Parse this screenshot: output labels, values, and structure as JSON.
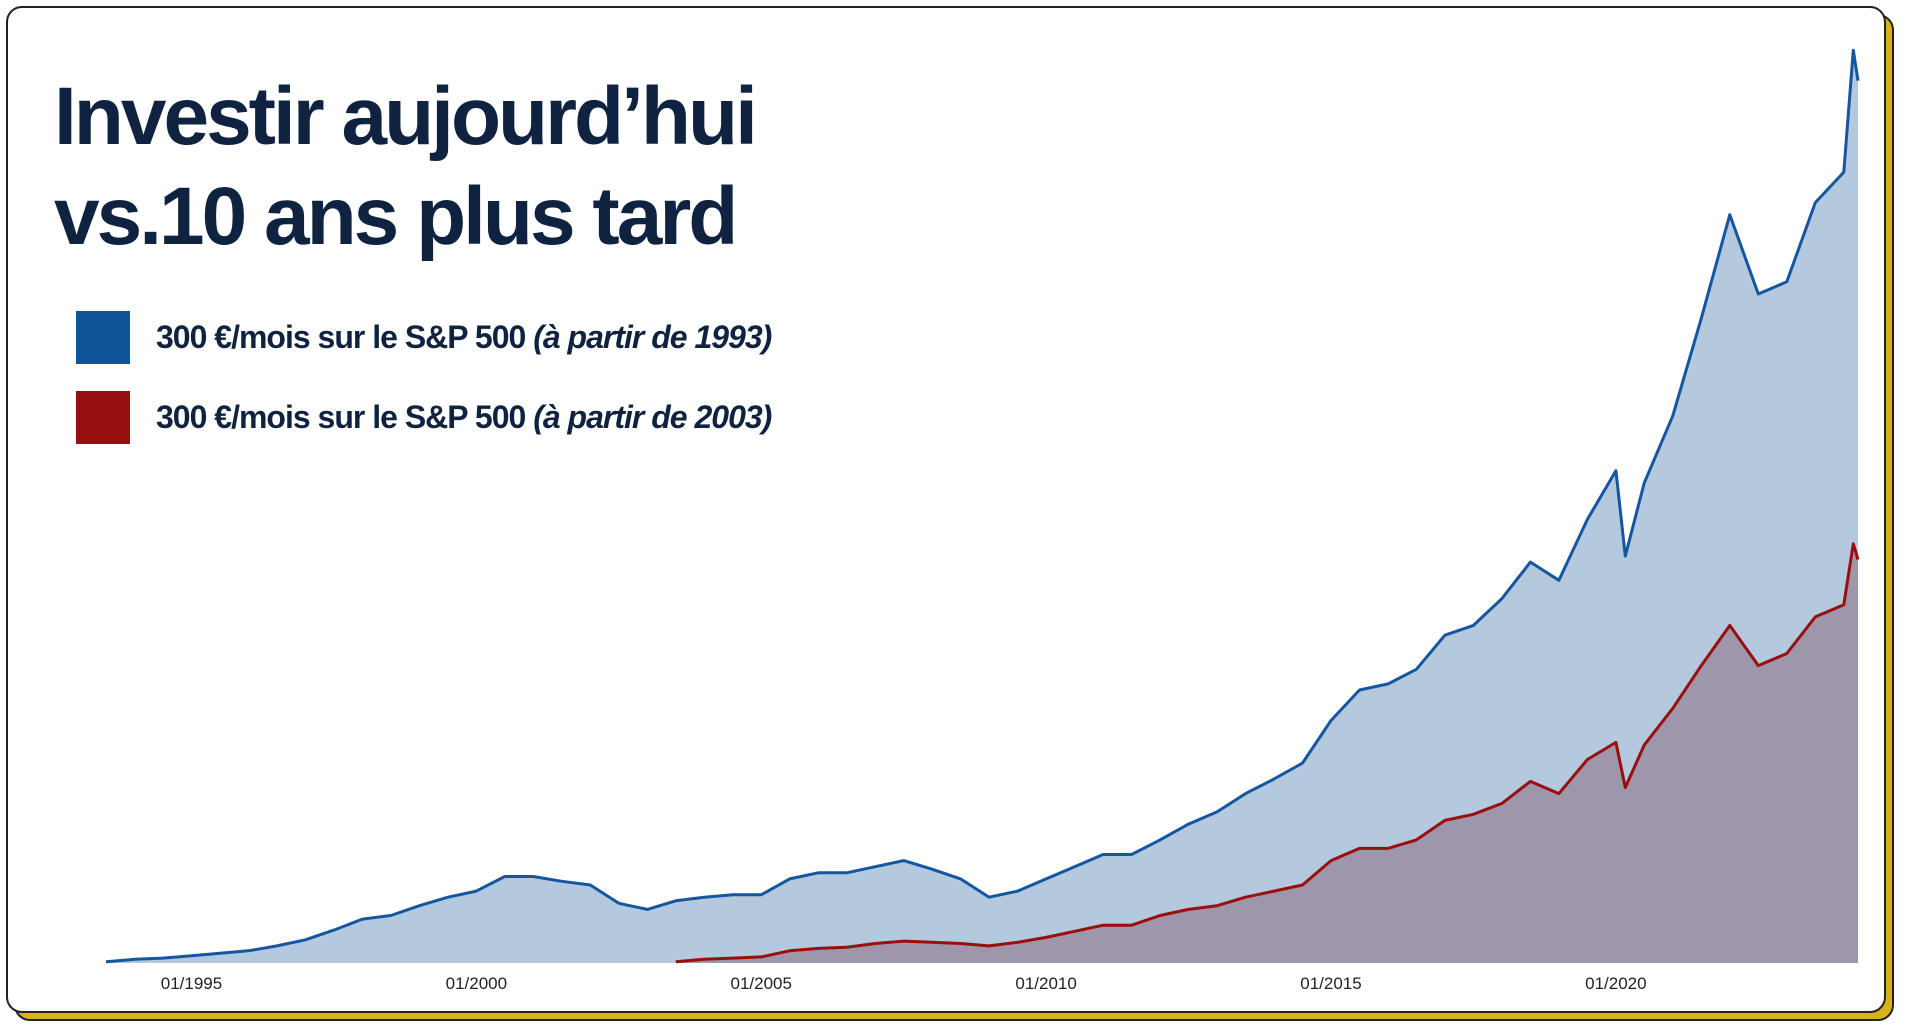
{
  "chart_data": {
    "type": "area",
    "title": "Investir aujourd’hui\nvs.10 ans plus tard",
    "x": [
      "07/1993",
      "01/1994",
      "07/1994",
      "01/1995",
      "07/1995",
      "01/1996",
      "07/1996",
      "01/1997",
      "07/1997",
      "01/1998",
      "07/1998",
      "01/1999",
      "07/1999",
      "01/2000",
      "07/2000",
      "01/2001",
      "07/2001",
      "01/2002",
      "07/2002",
      "01/2003",
      "07/2003",
      "01/2004",
      "07/2004",
      "01/2005",
      "07/2005",
      "01/2006",
      "07/2006",
      "01/2007",
      "07/2007",
      "01/2008",
      "07/2008",
      "01/2009",
      "07/2009",
      "01/2010",
      "07/2010",
      "01/2011",
      "07/2011",
      "01/2012",
      "07/2012",
      "01/2013",
      "07/2013",
      "01/2014",
      "07/2014",
      "01/2015",
      "07/2015",
      "01/2016",
      "07/2016",
      "01/2017",
      "07/2017",
      "01/2018",
      "07/2018",
      "01/2019",
      "07/2019",
      "01/2020",
      "03/2020",
      "07/2020",
      "01/2021",
      "07/2021",
      "01/2022",
      "07/2022",
      "01/2023",
      "07/2023",
      "01/2024",
      "03/2024",
      "04/2024"
    ],
    "series": [
      {
        "name": "300 €/mois sur le S&P 500 (à partir de 1993)",
        "color": "#0d5499",
        "line_color": "#1457a0",
        "fill": "#b4c8de",
        "values": [
          1,
          3,
          4,
          6,
          8,
          10,
          14,
          19,
          27,
          36,
          39,
          47,
          54,
          59,
          71,
          71,
          67,
          64,
          49,
          44,
          51,
          54,
          56,
          56,
          69,
          74,
          74,
          79,
          84,
          77,
          69,
          54,
          59,
          69,
          79,
          89,
          89,
          101,
          114,
          124,
          139,
          151,
          164,
          199,
          224,
          229,
          241,
          269,
          277,
          299,
          329,
          314,
          364,
          404,
          334,
          394,
          449,
          529,
          614,
          549,
          559,
          624,
          649,
          749,
          724
        ]
      },
      {
        "name": "300 €/mois sur le S&P 500 (à partir de 2003)",
        "color": "#960e0e",
        "line_color": "#9b0e0e",
        "fill": "#9e96aa",
        "values": [
          null,
          null,
          null,
          null,
          null,
          null,
          null,
          null,
          null,
          null,
          null,
          null,
          null,
          null,
          null,
          null,
          null,
          null,
          null,
          null,
          1,
          3,
          4,
          5,
          10,
          12,
          13,
          16,
          18,
          17,
          16,
          14,
          17,
          21,
          26,
          31,
          31,
          39,
          44,
          47,
          54,
          59,
          64,
          84,
          94,
          94,
          101,
          117,
          122,
          131,
          149,
          139,
          167,
          181,
          144,
          179,
          209,
          244,
          277,
          244,
          254,
          284,
          294,
          344,
          331
        ]
      }
    ],
    "xlim": [
      "07/1993",
      "04/2024"
    ],
    "xticks": [
      "01/1995",
      "01/2000",
      "01/2005",
      "01/2010",
      "01/2015",
      "01/2020"
    ],
    "ylim": [
      0,
      750
    ]
  }
}
